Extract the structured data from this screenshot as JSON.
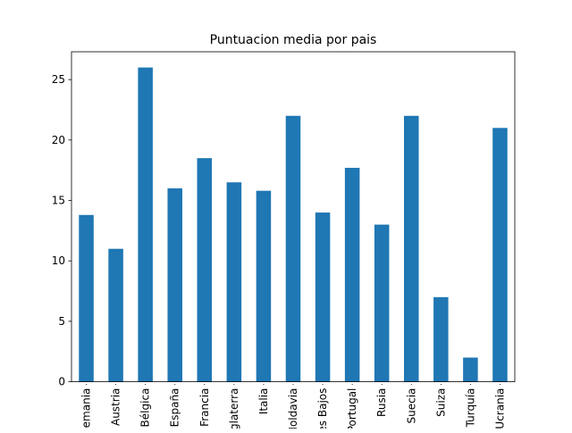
{
  "chart_data": {
    "type": "bar",
    "title": "Puntuacion media por pais",
    "xlabel": "",
    "ylabel": "",
    "categories": [
      "Alemania",
      "Austria",
      "Bélgica",
      "España",
      "Francia",
      "Inglaterra",
      "Italia",
      "Moldavia",
      "Países Bajos",
      "Portugal",
      "Rusia",
      "Suecia",
      "Suiza",
      "Turquía",
      "Ucrania"
    ],
    "values": [
      13.8,
      11.0,
      26.0,
      16.0,
      18.5,
      16.5,
      15.8,
      22.0,
      14.0,
      17.7,
      13.0,
      22.0,
      7.0,
      2.0,
      21.0
    ],
    "ylim": [
      0,
      27.3
    ],
    "yticks": [
      0,
      5,
      10,
      15,
      20,
      25
    ],
    "bar_color": "#1f77b4",
    "grid": false,
    "legend": "none"
  }
}
